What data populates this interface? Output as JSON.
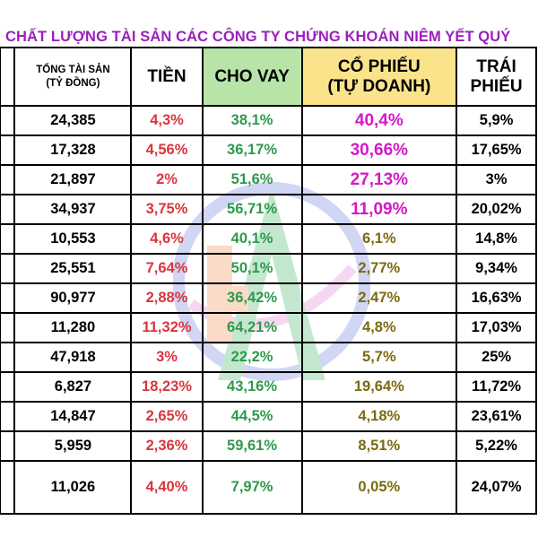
{
  "title": "CHẤT LƯỢNG TÀI SẢN CÁC CÔNG TY CHỨNG KHOÁN NIÊM YẾT QUÝ",
  "header": {
    "total_assets_line1": "TỔNG TÀI SẢN",
    "total_assets_line2": "(TỶ ĐỒNG)",
    "cash": "TIỀN",
    "loans": "CHO VAY",
    "stocks_line1": "CỔ PHIẾU",
    "stocks_line2": "(TỰ DOANH)",
    "bonds_line1": "TRÁI",
    "bonds_line2": "PHIẾU"
  },
  "colors": {
    "title": "#9b1fbd",
    "loans_header_bg": "#b8e4a8",
    "stocks_header_bg": "#fbe38c",
    "cash_text": "#d9363e",
    "loans_text": "#2e9a4c",
    "stocks_high_text": "#d319c9",
    "stocks_low_text": "#7c6a10"
  },
  "rows": [
    {
      "total": "24,385",
      "cash": "4,3%",
      "loans": "38,1%",
      "stocks": "40,4%",
      "bonds": "5,9%"
    },
    {
      "total": "17,328",
      "cash": "4,56%",
      "loans": "36,17%",
      "stocks": "30,66%",
      "bonds": "17,65%"
    },
    {
      "total": "21,897",
      "cash": "2%",
      "loans": "51,6%",
      "stocks": "27,13%",
      "bonds": "3%"
    },
    {
      "total": "34,937",
      "cash": "3,75%",
      "loans": "56,71%",
      "stocks": "11,09%",
      "bonds": "20,02%"
    },
    {
      "total": "10,553",
      "cash": "4,6%",
      "loans": "40,1%",
      "stocks": "6,1%",
      "bonds": "14,8%"
    },
    {
      "total": "25,551",
      "cash": "7,64%",
      "loans": "50,1%",
      "stocks": "2,77%",
      "bonds": "9,34%"
    },
    {
      "total": "90,977",
      "cash": "2,88%",
      "loans": "36,42%",
      "stocks": "2,47%",
      "bonds": "16,63%"
    },
    {
      "total": "11,280",
      "cash": "11,32%",
      "loans": "64,21%",
      "stocks": "4,8%",
      "bonds": "17,03%"
    },
    {
      "total": "47,918",
      "cash": "3%",
      "loans": "22,2%",
      "stocks": "5,7%",
      "bonds": "25%"
    },
    {
      "total": "6,827",
      "cash": "18,23%",
      "loans": "43,16%",
      "stocks": "19,64%",
      "bonds": "11,72%"
    },
    {
      "total": "14,847",
      "cash": "2,65%",
      "loans": "44,5%",
      "stocks": "4,18%",
      "bonds": "23,61%"
    },
    {
      "total": "5,959",
      "cash": "2,36%",
      "loans": "59,61%",
      "stocks": "8,51%",
      "bonds": "5,22%"
    },
    {
      "total": "11,026",
      "cash": "4,40%",
      "loans": "7,97%",
      "stocks": "0,05%",
      "bonds": "24,07%"
    }
  ]
}
